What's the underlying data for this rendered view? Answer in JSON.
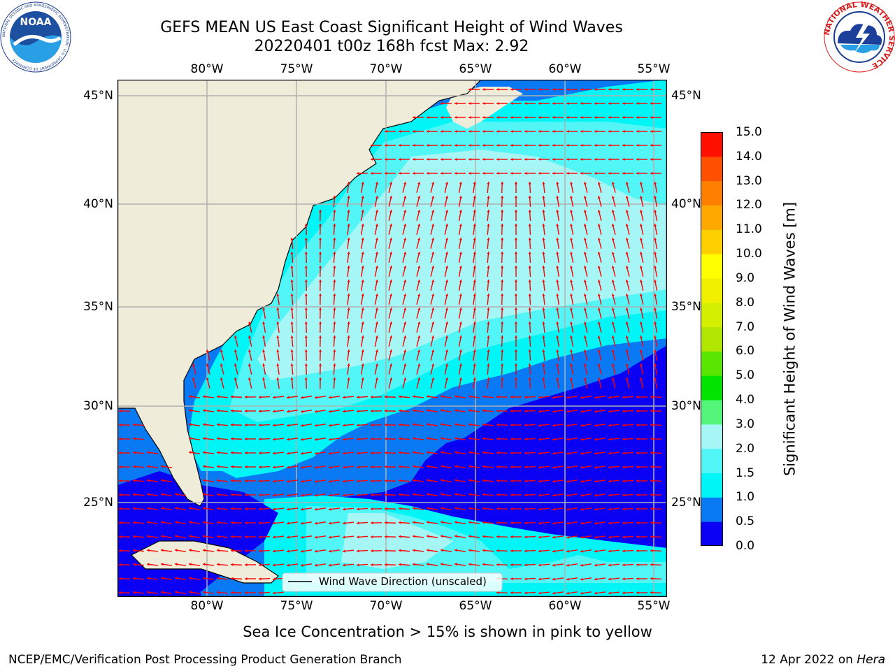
{
  "header": {
    "title_line1": "GEFS MEAN US East Coast Significant Height of Wind Waves",
    "title_line2": "20220401 t00z 168h fcst   Max: 2.92"
  },
  "logos": {
    "left_text": "NOAA",
    "left_ring_text": "NATIONAL OCEANIC AND ATMOSPHERIC ADMINISTRATION · U.S. DEPARTMENT OF COMMERCE",
    "right_ring_text": "NATIONAL WEATHER SERVICE"
  },
  "map": {
    "lon_labels": [
      "80°W",
      "75°W",
      "70°W",
      "65°W",
      "60°W",
      "55°W"
    ],
    "lat_labels": [
      "45°N",
      "40°N",
      "35°N",
      "30°N",
      "25°N"
    ],
    "legend_label": "Wind Wave Direction (unscaled)",
    "colors": {
      "land": "#efecda",
      "c0": "#0a00f4",
      "c05": "#0a7af4",
      "c10": "#00f6f6",
      "c15": "#53f6f6",
      "c20": "#a6f6f6",
      "arrow": "#ff0000",
      "grid": "#b0b0b0"
    }
  },
  "colorbar": {
    "label": "Significant Height of Wind Waves [m]",
    "ticks": [
      "0.0",
      "0.5",
      "1.0",
      "1.5",
      "2.0",
      "3.0",
      "4.0",
      "5.0",
      "6.0",
      "7.0",
      "8.0",
      "9.0",
      "10.0",
      "11.0",
      "12.0",
      "13.0",
      "14.0",
      "15.0"
    ],
    "colors": [
      "#0a00f4",
      "#0a7af4",
      "#00f6f6",
      "#53f6f6",
      "#a6f6f6",
      "#53f67a",
      "#00e400",
      "#5ae600",
      "#b0e600",
      "#d4f000",
      "#f0f000",
      "#ffff00",
      "#ffd000",
      "#ffa800",
      "#ff8000",
      "#ff5000",
      "#ff1000"
    ]
  },
  "note": "Sea Ice Concentration > 15% is shown in pink to yellow",
  "footer": {
    "left": "NCEP/EMC/Verification Post Processing Product Generation Branch",
    "right_date": "12 Apr 2022 on ",
    "right_host": "Hera"
  }
}
